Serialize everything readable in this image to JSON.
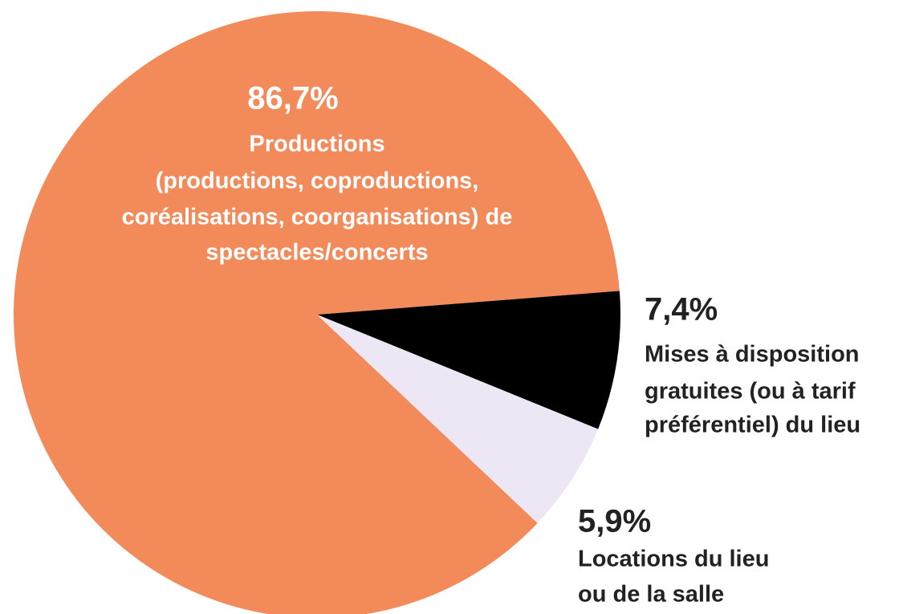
{
  "chart_data": {
    "type": "pie",
    "categories": [
      [
        "Productions",
        "(productions, coproductions,",
        "coréalisations, coorganisations) de",
        "spectacles/concerts"
      ],
      [
        "Mises à disposition",
        "gratuites (ou à tarif",
        "préférentiel) du lieu"
      ],
      [
        "Locations du lieu",
        "ou de la salle"
      ]
    ],
    "values": [
      86.7,
      7.4,
      5.9
    ],
    "value_labels": [
      "86,7%",
      "7,4%",
      "5,9%"
    ],
    "colors": [
      "#f38a5a",
      "#000000",
      "#ede6f4"
    ]
  }
}
